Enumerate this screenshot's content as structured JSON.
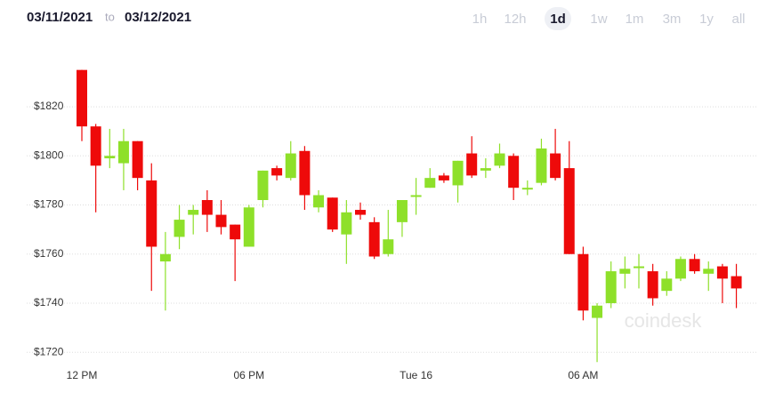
{
  "header": {
    "from_date": "03/11/2021",
    "to_word": "to",
    "to_date": "03/12/2021",
    "ranges": [
      "1h",
      "12h",
      "1d",
      "1w",
      "1m",
      "3m",
      "1y",
      "all"
    ],
    "selected": "1d"
  },
  "chart_data": {
    "type": "candlestick",
    "watermark": "coindesk",
    "categories": [
      "12 PM",
      null,
      null,
      null,
      null,
      null,
      null,
      null,
      null,
      null,
      null,
      null,
      "06 PM",
      null,
      null,
      null,
      null,
      null,
      null,
      null,
      null,
      null,
      null,
      null,
      "Tue 16",
      null,
      null,
      null,
      null,
      null,
      null,
      null,
      null,
      null,
      null,
      null,
      "06 AM",
      null,
      null,
      null,
      null,
      null,
      null,
      null,
      null,
      null,
      null,
      null
    ],
    "open": [
      1835,
      1812,
      1799,
      1797,
      1806,
      1790,
      1757,
      1767,
      1776,
      1782,
      1776,
      1772,
      1763,
      1782,
      1795,
      1791,
      1802,
      1779,
      1783,
      1768,
      1778,
      1773,
      1760,
      1773,
      1784,
      1787,
      1792,
      1788,
      1801,
      1794,
      1796,
      1800,
      1787,
      1789,
      1801,
      1795,
      1760,
      1734,
      1740,
      1752,
      1755,
      1753,
      1745,
      1750,
      1758,
      1752,
      1755,
      1751
    ],
    "high": [
      1835,
      1813,
      1811,
      1811,
      1806,
      1797,
      1769,
      1780,
      1780,
      1786,
      1782,
      1772,
      1780,
      1794,
      1796,
      1806,
      1804,
      1786,
      1783,
      1782,
      1781,
      1775,
      1778,
      1782,
      1791,
      1795,
      1793,
      1798,
      1808,
      1799,
      1805,
      1801,
      1790,
      1807,
      1811,
      1806,
      1763,
      1740,
      1757,
      1759,
      1760,
      1756,
      1753,
      1759,
      1760,
      1757,
      1756,
      1756
    ],
    "low": [
      1806,
      1777,
      1795,
      1786,
      1786,
      1745,
      1737,
      1762,
      1768,
      1769,
      1768,
      1749,
      1763,
      1779,
      1790,
      1790,
      1778,
      1777,
      1769,
      1756,
      1774,
      1758,
      1759,
      1767,
      1776,
      1787,
      1789,
      1781,
      1791,
      1791,
      1795,
      1782,
      1784,
      1788,
      1790,
      1760,
      1733,
      1716,
      1738,
      1746,
      1746,
      1739,
      1743,
      1749,
      1752,
      1745,
      1740,
      1738
    ],
    "close": [
      1812,
      1796,
      1800,
      1806,
      1791,
      1763,
      1760,
      1774,
      1778,
      1776,
      1771,
      1766,
      1779,
      1794,
      1792,
      1801,
      1784,
      1784,
      1770,
      1777,
      1776,
      1759,
      1766,
      1782,
      1784,
      1791,
      1790,
      1798,
      1792,
      1795,
      1801,
      1787,
      1787,
      1803,
      1791,
      1760,
      1737,
      1739,
      1753,
      1754,
      1755,
      1742,
      1750,
      1758,
      1753,
      1754,
      1750,
      1746
    ],
    "up_color": "#8ee02a",
    "down_color": "#ee0a0a",
    "ylim": [
      1715,
      1849
    ],
    "yticks": [
      {
        "value": 1720,
        "label": "$1720"
      },
      {
        "value": 1740,
        "label": "$1740"
      },
      {
        "value": 1760,
        "label": "$1760"
      },
      {
        "value": 1780,
        "label": "$1780"
      },
      {
        "value": 1800,
        "label": "$1800"
      },
      {
        "value": 1820,
        "label": "$1820"
      }
    ],
    "grid": true
  }
}
